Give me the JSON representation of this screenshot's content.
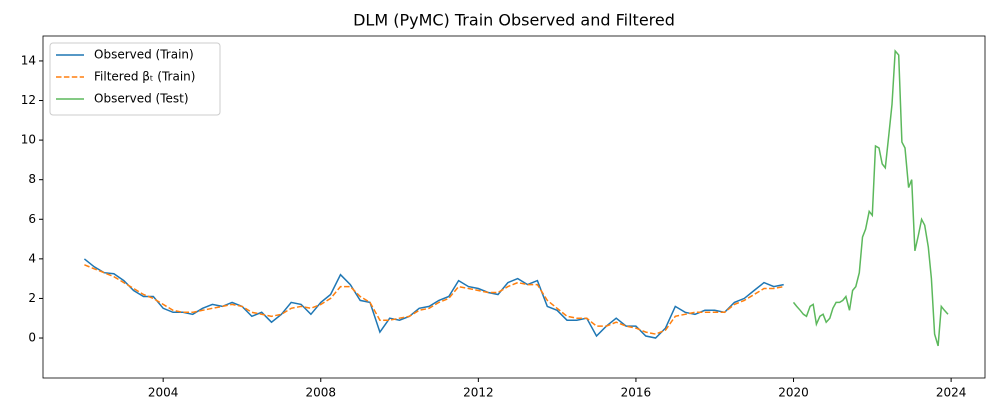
{
  "chart_data": {
    "type": "line",
    "title": "DLM (PyMC) Train Observed and Filtered",
    "xlim": [
      2000.95,
      2024.86
    ],
    "ylim": [
      -2.02,
      15.26
    ],
    "xticks": [
      2004,
      2008,
      2012,
      2016,
      2020,
      2024
    ],
    "yticks": [
      0,
      2,
      4,
      6,
      8,
      10,
      12,
      14
    ],
    "legend": "upper-left",
    "series": [
      {
        "name": "Observed (Train)",
        "color": "#1f77b4",
        "dash": "solid",
        "x": [
          2002,
          2002.25,
          2002.5,
          2002.75,
          2003,
          2003.25,
          2003.5,
          2003.75,
          2004,
          2004.25,
          2004.5,
          2004.75,
          2005,
          2005.25,
          2005.5,
          2005.75,
          2006,
          2006.25,
          2006.5,
          2006.75,
          2007,
          2007.25,
          2007.5,
          2007.75,
          2008,
          2008.25,
          2008.5,
          2008.75,
          2009,
          2009.25,
          2009.5,
          2009.75,
          2010,
          2010.25,
          2010.5,
          2010.75,
          2011,
          2011.25,
          2011.5,
          2011.75,
          2012,
          2012.25,
          2012.5,
          2012.75,
          2013,
          2013.25,
          2013.5,
          2013.75,
          2014,
          2014.25,
          2014.5,
          2014.75,
          2015,
          2015.25,
          2015.5,
          2015.75,
          2016,
          2016.25,
          2016.5,
          2016.75,
          2017,
          2017.25,
          2017.5,
          2017.75,
          2018,
          2018.25,
          2018.5,
          2018.75,
          2019,
          2019.25,
          2019.5,
          2019.75
        ],
        "values": [
          4.0,
          3.6,
          3.3,
          3.25,
          2.9,
          2.4,
          2.1,
          2.1,
          1.5,
          1.3,
          1.3,
          1.2,
          1.5,
          1.7,
          1.6,
          1.8,
          1.6,
          1.1,
          1.3,
          0.8,
          1.2,
          1.8,
          1.7,
          1.2,
          1.8,
          2.2,
          3.2,
          2.7,
          1.9,
          1.8,
          0.3,
          1.0,
          0.9,
          1.1,
          1.5,
          1.6,
          1.9,
          2.1,
          2.9,
          2.6,
          2.5,
          2.3,
          2.2,
          2.8,
          3.0,
          2.7,
          2.9,
          1.6,
          1.4,
          0.9,
          0.9,
          1.0,
          0.1,
          0.6,
          1.0,
          0.6,
          0.6,
          0.1,
          0.0,
          0.5,
          1.6,
          1.3,
          1.2,
          1.4,
          1.4,
          1.3,
          1.8,
          2.0,
          2.4,
          2.8,
          2.6,
          2.7
        ]
      },
      {
        "name": "Filtered βₜ (Train)",
        "color": "#ff7f0e",
        "dash": "dashed",
        "x": [
          2002,
          2002.25,
          2002.5,
          2002.75,
          2003,
          2003.25,
          2003.5,
          2003.75,
          2004,
          2004.25,
          2004.5,
          2004.75,
          2005,
          2005.25,
          2005.5,
          2005.75,
          2006,
          2006.25,
          2006.5,
          2006.75,
          2007,
          2007.25,
          2007.5,
          2007.75,
          2008,
          2008.25,
          2008.5,
          2008.75,
          2009,
          2009.25,
          2009.5,
          2009.75,
          2010,
          2010.25,
          2010.5,
          2010.75,
          2011,
          2011.25,
          2011.5,
          2011.75,
          2012,
          2012.25,
          2012.5,
          2012.75,
          2013,
          2013.25,
          2013.5,
          2013.75,
          2014,
          2014.25,
          2014.5,
          2014.75,
          2015,
          2015.25,
          2015.5,
          2015.75,
          2016,
          2016.25,
          2016.5,
          2016.75,
          2017,
          2017.25,
          2017.5,
          2017.75,
          2018,
          2018.25,
          2018.5,
          2018.75,
          2019,
          2019.25,
          2019.5,
          2019.75
        ],
        "values": [
          3.7,
          3.5,
          3.3,
          3.1,
          2.8,
          2.5,
          2.2,
          2.0,
          1.7,
          1.4,
          1.3,
          1.3,
          1.4,
          1.5,
          1.6,
          1.7,
          1.6,
          1.3,
          1.2,
          1.1,
          1.2,
          1.5,
          1.6,
          1.5,
          1.7,
          2.0,
          2.6,
          2.6,
          2.1,
          1.8,
          0.9,
          0.9,
          1.0,
          1.1,
          1.4,
          1.5,
          1.8,
          2.0,
          2.6,
          2.5,
          2.4,
          2.3,
          2.3,
          2.6,
          2.8,
          2.7,
          2.7,
          1.9,
          1.5,
          1.1,
          1.0,
          1.0,
          0.6,
          0.6,
          0.8,
          0.6,
          0.5,
          0.3,
          0.2,
          0.4,
          1.1,
          1.2,
          1.3,
          1.3,
          1.3,
          1.3,
          1.7,
          1.9,
          2.2,
          2.5,
          2.5,
          2.6
        ]
      },
      {
        "name": "Observed (Test)",
        "color": "#5cb85c",
        "dash": "solid",
        "x": [
          2020,
          2020.08,
          2020.17,
          2020.25,
          2020.33,
          2020.42,
          2020.5,
          2020.58,
          2020.67,
          2020.75,
          2020.83,
          2020.92,
          2021,
          2021.08,
          2021.17,
          2021.25,
          2021.33,
          2021.42,
          2021.5,
          2021.58,
          2021.67,
          2021.75,
          2021.83,
          2021.92,
          2022,
          2022.08,
          2022.17,
          2022.25,
          2022.33,
          2022.42,
          2022.5,
          2022.58,
          2022.67,
          2022.75,
          2022.83,
          2022.92,
          2023,
          2023.08,
          2023.17,
          2023.25,
          2023.33,
          2023.42,
          2023.5,
          2023.58,
          2023.67,
          2023.75,
          2023.83,
          2023.92
        ],
        "values": [
          1.8,
          1.6,
          1.4,
          1.2,
          1.1,
          1.6,
          1.7,
          0.7,
          1.1,
          1.2,
          0.8,
          1.0,
          1.5,
          1.8,
          1.8,
          1.9,
          2.1,
          1.4,
          2.4,
          2.6,
          3.3,
          5.1,
          5.5,
          6.4,
          6.2,
          9.7,
          9.6,
          8.8,
          8.6,
          10.3,
          11.8,
          14.5,
          14.3,
          9.9,
          9.6,
          7.6,
          8.0,
          4.4,
          5.2,
          6.0,
          5.7,
          4.6,
          3.0,
          0.2,
          -0.4,
          1.6,
          1.4,
          1.2
        ]
      }
    ]
  }
}
